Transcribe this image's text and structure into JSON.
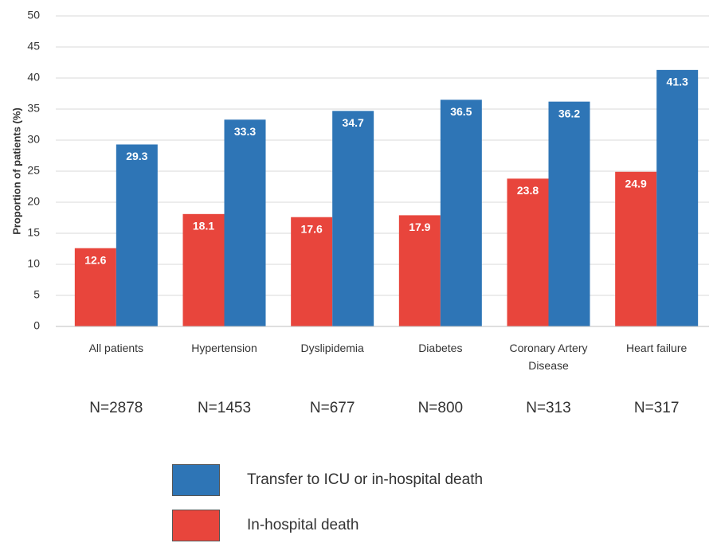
{
  "chart_data": {
    "type": "bar",
    "y_label": "Proportion of patients (%)",
    "categories": [
      "All patients",
      "Hypertension",
      "Dyslipidemia",
      "Diabetes",
      "Coronary Artery Disease",
      "Heart failure"
    ],
    "n_labels": [
      "N=2878",
      "N=1453",
      "N=677",
      "N=800",
      "N=313",
      "N=317"
    ],
    "series": [
      {
        "name": "In-hospital death",
        "color": "#e8453c",
        "values": [
          12.6,
          18.1,
          17.6,
          17.9,
          23.8,
          24.9
        ]
      },
      {
        "name": "Transfer to ICU or in-hospital death",
        "color": "#2e75b6",
        "values": [
          29.3,
          33.3,
          34.7,
          36.5,
          36.2,
          41.3
        ]
      }
    ],
    "ylim": [
      0,
      50
    ],
    "yticks": [
      0,
      5,
      10,
      15,
      20,
      25,
      30,
      35,
      40,
      45,
      50
    ],
    "grid": true
  }
}
